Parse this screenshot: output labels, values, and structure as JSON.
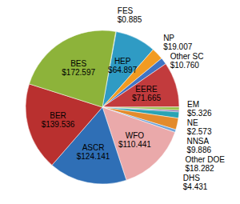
{
  "chart_data": {
    "type": "pie",
    "categories": [
      "FES",
      "HEP",
      "NP",
      "Other SC",
      "EERE",
      "EM",
      "NE",
      "NNSA",
      "Other DOE",
      "DHS",
      "WFO",
      "ASCR",
      "BER",
      "BES"
    ],
    "values": [
      0.885,
      64.897,
      19.007,
      10.76,
      71.665,
      5.326,
      2.573,
      9.886,
      18.282,
      4.431,
      110.441,
      124.141,
      139.536,
      172.597
    ],
    "value_labels": [
      "$0.885",
      "$64.897",
      "$19.007",
      "$10.760",
      "$71.665",
      "$5.326",
      "$2.573",
      "$9.886",
      "$18.282",
      "$4.431",
      "$110.441",
      "$124.141",
      "$139.536",
      "$172.597"
    ],
    "colors": [
      "#9fbf5a",
      "#2f9bc4",
      "#f29b22",
      "#3f74c4",
      "#c23b3d",
      "#9cc24c",
      "#7b5ea4",
      "#2aa3b3",
      "#e38b2c",
      "#6ea3d9",
      "#eaa9aa",
      "#2f6fb6",
      "#b9302f",
      "#8db33a"
    ],
    "data_labels": true
  }
}
